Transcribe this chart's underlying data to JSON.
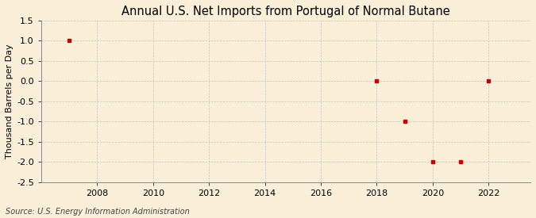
{
  "title": "Annual U.S. Net Imports from Portugal of Normal Butane",
  "ylabel": "Thousand Barrels per Day",
  "source": "Source: U.S. Energy Information Administration",
  "background_color": "#faefd8",
  "plot_background_color": "#faefd8",
  "grid_color": "#bbbbbb",
  "data_color": "#cc0000",
  "years": [
    2007,
    2018,
    2019,
    2020,
    2021,
    2022
  ],
  "values": [
    1.0,
    0.0,
    -1.0,
    -2.0,
    -2.0,
    0.0
  ],
  "xlim": [
    2006.0,
    2023.5
  ],
  "ylim": [
    -2.5,
    1.5
  ],
  "yticks": [
    -2.5,
    -2.0,
    -1.5,
    -1.0,
    -0.5,
    0.0,
    0.5,
    1.0,
    1.5
  ],
  "xticks": [
    2008,
    2010,
    2012,
    2014,
    2016,
    2018,
    2020,
    2022
  ],
  "title_fontsize": 10.5,
  "label_fontsize": 8,
  "tick_fontsize": 8,
  "source_fontsize": 7
}
